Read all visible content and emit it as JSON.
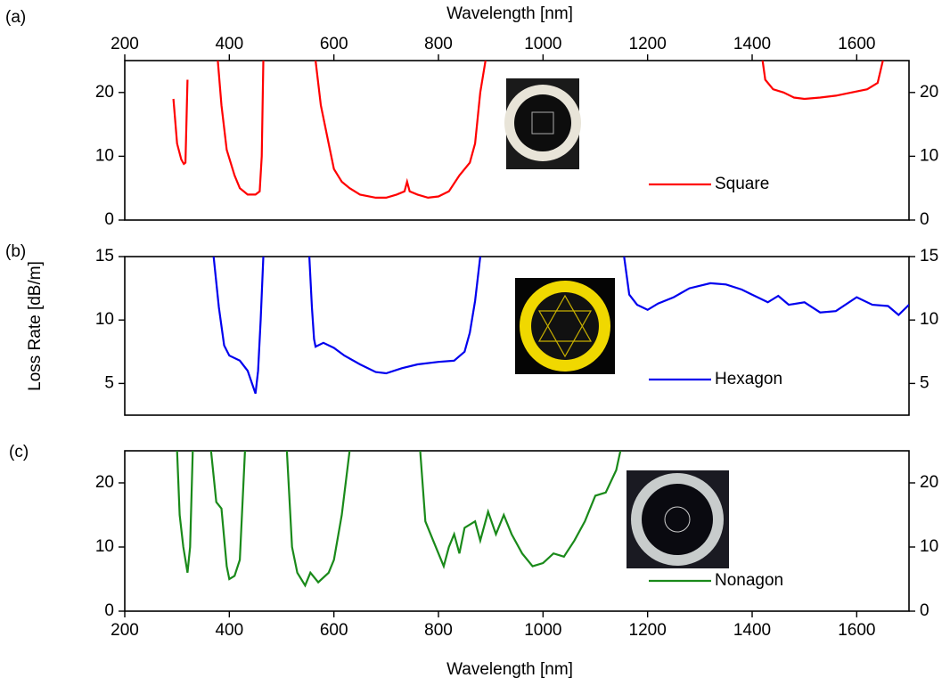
{
  "chart_data": [
    {
      "type": "line",
      "panel_label": "(a)",
      "xlabel": "Wavelength [nm]",
      "xlim": [
        200,
        1700
      ],
      "xticks": [
        200,
        400,
        600,
        800,
        1000,
        1200,
        1400,
        1600
      ],
      "ylim": [
        0,
        25
      ],
      "yticks": [
        0,
        10,
        20
      ],
      "series": [
        {
          "name": "Square",
          "color": "#ff0000",
          "x": [
            293,
            300,
            308,
            313,
            316,
            320,
            340,
            378,
            385,
            395,
            410,
            420,
            435,
            450,
            458,
            462,
            465,
            500,
            565,
            575,
            590,
            600,
            615,
            630,
            650,
            680,
            700,
            720,
            735,
            740,
            745,
            760,
            780,
            800,
            820,
            840,
            860,
            870,
            880,
            890,
            1100,
            1420,
            1425,
            1440,
            1460,
            1480,
            1500,
            1530,
            1560,
            1590,
            1620,
            1640,
            1650
          ],
          "values": [
            19,
            12,
            9.5,
            8.8,
            9,
            22,
            null,
            25,
            18,
            11,
            7,
            5,
            4,
            4,
            4.5,
            10,
            25,
            null,
            25,
            18,
            12,
            8,
            6,
            5,
            4,
            3.5,
            3.5,
            4,
            4.5,
            6,
            4.5,
            4,
            3.5,
            3.7,
            4.5,
            7,
            9,
            12,
            20,
            25,
            null,
            25,
            22,
            20.5,
            20,
            19.2,
            19,
            19.2,
            19.5,
            20,
            20.5,
            21.5,
            25
          ]
        }
      ]
    },
    {
      "type": "line",
      "panel_label": "(b)",
      "ylabel": "Loss Rate [dB/m]",
      "xlim": [
        200,
        1700
      ],
      "ylim": [
        2.5,
        15
      ],
      "yticks": [
        5,
        10,
        15
      ],
      "series": [
        {
          "name": "Hexagon",
          "color": "#0000ee",
          "x": [
            370,
            380,
            390,
            400,
            420,
            435,
            450,
            455,
            460,
            465,
            500,
            553,
            558,
            562,
            565,
            580,
            600,
            620,
            650,
            680,
            700,
            730,
            760,
            800,
            830,
            850,
            860,
            870,
            880,
            1000,
            1155,
            1165,
            1180,
            1200,
            1220,
            1250,
            1280,
            1320,
            1350,
            1380,
            1400,
            1430,
            1450,
            1470,
            1500,
            1530,
            1560,
            1600,
            1630,
            1660,
            1680,
            1700
          ],
          "values": [
            15,
            11,
            8,
            7.2,
            6.8,
            6,
            4.2,
            6,
            10,
            15,
            null,
            15,
            11,
            8.5,
            7.9,
            8.2,
            7.8,
            7.2,
            6.5,
            5.9,
            5.8,
            6.2,
            6.5,
            6.7,
            6.8,
            7.5,
            9,
            11.5,
            15,
            null,
            15,
            12,
            11.2,
            10.8,
            11.3,
            11.8,
            12.5,
            12.9,
            12.8,
            12.4,
            12,
            11.4,
            11.9,
            11.2,
            11.4,
            10.6,
            10.7,
            11.8,
            11.2,
            11.1,
            10.4,
            11.2
          ]
        }
      ]
    },
    {
      "type": "line",
      "panel_label": "(c)",
      "xlabel": "Wavelength [nm]",
      "xlim": [
        200,
        1700
      ],
      "xticks": [
        200,
        400,
        600,
        800,
        1000,
        1200,
        1400,
        1600
      ],
      "ylim": [
        0,
        25
      ],
      "yticks": [
        0,
        10,
        20
      ],
      "series": [
        {
          "name": "Nonagon",
          "color": "#1a8a1a",
          "x": [
            300,
            305,
            312,
            320,
            325,
            330,
            350,
            365,
            375,
            385,
            395,
            400,
            410,
            420,
            430,
            470,
            510,
            520,
            530,
            545,
            555,
            570,
            590,
            600,
            615,
            630,
            700,
            765,
            775,
            790,
            810,
            820,
            830,
            840,
            850,
            870,
            880,
            895,
            910,
            925,
            940,
            960,
            980,
            1000,
            1020,
            1040,
            1060,
            1080,
            1100,
            1120,
            1140,
            1148
          ],
          "values": [
            25,
            15,
            10,
            6,
            10,
            25,
            null,
            25,
            17,
            16,
            7,
            5,
            5.5,
            8,
            25,
            null,
            25,
            10,
            6,
            4,
            6,
            4.5,
            6,
            8,
            15,
            25,
            null,
            25,
            14,
            11,
            7,
            10,
            12,
            9,
            13,
            14,
            11,
            15.5,
            12,
            15,
            12,
            9,
            7,
            7.5,
            9,
            8.5,
            11,
            14,
            18,
            18.5,
            22,
            25
          ]
        }
      ]
    }
  ]
}
